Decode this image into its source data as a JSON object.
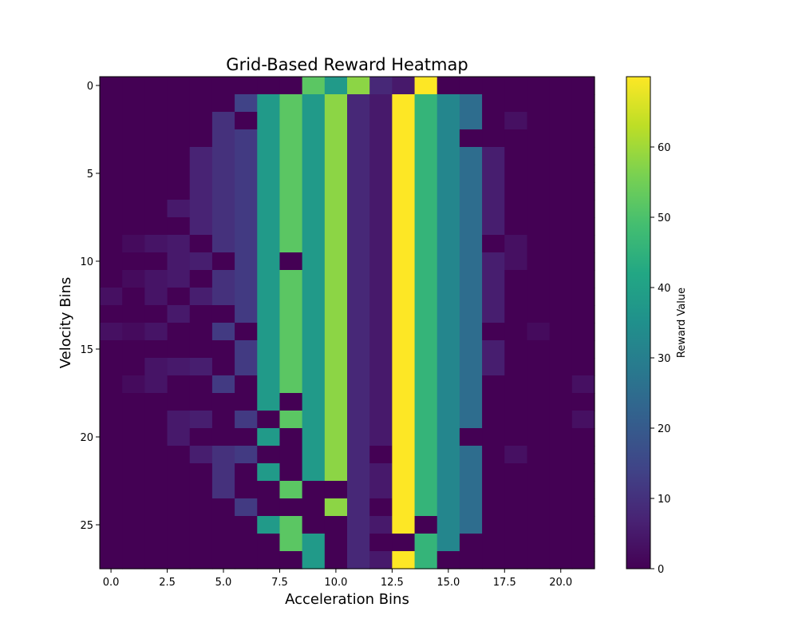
{
  "chart_data": {
    "type": "heatmap",
    "title": "Grid-Based Reward Heatmap",
    "xlabel": "Acceleration Bins",
    "ylabel": "Velocity Bins",
    "colorbar_label": "Reward Value",
    "colormap": "viridis",
    "vmin": 0,
    "vmax": 70,
    "n_cols": 22,
    "n_rows": 28,
    "xlim": [
      -0.5,
      21.5
    ],
    "ylim": [
      27.5,
      -0.5
    ],
    "x_ticks": [
      0,
      2.5,
      5,
      7.5,
      10,
      12.5,
      15,
      17.5,
      20
    ],
    "x_tick_labels": [
      "0.0",
      "2.5",
      "5.0",
      "7.5",
      "10.0",
      "12.5",
      "15.0",
      "17.5",
      "20.0"
    ],
    "y_ticks": [
      0,
      5,
      10,
      15,
      20,
      25
    ],
    "y_tick_labels": [
      "0",
      "5",
      "10",
      "15",
      "20",
      "25"
    ],
    "colorbar_ticks": [
      0,
      10,
      20,
      30,
      40,
      50,
      60
    ],
    "colorbar_tick_labels": [
      "0",
      "10",
      "20",
      "30",
      "40",
      "50",
      "60"
    ],
    "values": [
      [
        0,
        0,
        0,
        0,
        0,
        0,
        0,
        0,
        0,
        52,
        38,
        58,
        8,
        5,
        70,
        0,
        0,
        0,
        0,
        0,
        0,
        0
      ],
      [
        0,
        0,
        0,
        0,
        0,
        0,
        14,
        38,
        52,
        38,
        58,
        8,
        5,
        70,
        46,
        32,
        25,
        0,
        0,
        0,
        0,
        0
      ],
      [
        0,
        0,
        0,
        0,
        0,
        10,
        0,
        38,
        52,
        38,
        58,
        8,
        5,
        70,
        46,
        32,
        25,
        0,
        3,
        0,
        0,
        0
      ],
      [
        0,
        0,
        0,
        0,
        0,
        10,
        12,
        38,
        52,
        38,
        58,
        8,
        5,
        70,
        46,
        32,
        0,
        0,
        0,
        0,
        0,
        0
      ],
      [
        0,
        0,
        0,
        0,
        7,
        10,
        12,
        38,
        52,
        38,
        58,
        8,
        5,
        70,
        46,
        32,
        25,
        6,
        0,
        0,
        0,
        0
      ],
      [
        0,
        0,
        0,
        0,
        7,
        10,
        12,
        38,
        52,
        38,
        58,
        8,
        5,
        70,
        46,
        32,
        25,
        6,
        0,
        0,
        0,
        0
      ],
      [
        0,
        0,
        0,
        0,
        7,
        10,
        12,
        38,
        52,
        38,
        58,
        8,
        5,
        70,
        46,
        32,
        25,
        6,
        0,
        0,
        0,
        0
      ],
      [
        0,
        0,
        0,
        5,
        7,
        10,
        12,
        38,
        52,
        38,
        58,
        8,
        5,
        70,
        46,
        32,
        25,
        6,
        0,
        0,
        0,
        0
      ],
      [
        0,
        0,
        0,
        0,
        7,
        10,
        12,
        38,
        52,
        38,
        58,
        8,
        5,
        70,
        46,
        32,
        25,
        6,
        0,
        0,
        0,
        0
      ],
      [
        0,
        2,
        4,
        5,
        0,
        10,
        12,
        38,
        52,
        38,
        58,
        8,
        5,
        70,
        46,
        32,
        25,
        0,
        3,
        0,
        0,
        0
      ],
      [
        0,
        0,
        0,
        5,
        6,
        0,
        12,
        38,
        0,
        38,
        58,
        8,
        5,
        70,
        46,
        32,
        25,
        6,
        3,
        0,
        0,
        0
      ],
      [
        0,
        2,
        4,
        5,
        0,
        10,
        12,
        38,
        52,
        38,
        58,
        8,
        5,
        70,
        46,
        32,
        25,
        6,
        0,
        0,
        0,
        0
      ],
      [
        3,
        0,
        4,
        0,
        6,
        10,
        12,
        38,
        52,
        38,
        58,
        8,
        5,
        70,
        46,
        32,
        25,
        6,
        0,
        0,
        0,
        0
      ],
      [
        0,
        0,
        0,
        5,
        0,
        0,
        12,
        38,
        52,
        38,
        58,
        8,
        5,
        70,
        46,
        32,
        25,
        6,
        0,
        0,
        0,
        0
      ],
      [
        3,
        2,
        4,
        0,
        0,
        12,
        0,
        38,
        52,
        38,
        58,
        8,
        5,
        70,
        46,
        32,
        25,
        0,
        0,
        2,
        0,
        0
      ],
      [
        0,
        0,
        0,
        0,
        0,
        0,
        12,
        38,
        52,
        38,
        58,
        8,
        5,
        70,
        46,
        32,
        25,
        6,
        0,
        0,
        0,
        0
      ],
      [
        0,
        0,
        4,
        5,
        6,
        0,
        12,
        38,
        52,
        38,
        58,
        8,
        5,
        70,
        46,
        32,
        25,
        6,
        0,
        0,
        0,
        0
      ],
      [
        0,
        2,
        4,
        0,
        0,
        12,
        0,
        38,
        52,
        38,
        58,
        8,
        5,
        70,
        46,
        32,
        25,
        0,
        0,
        0,
        0,
        3
      ],
      [
        0,
        0,
        0,
        0,
        0,
        0,
        0,
        38,
        0,
        38,
        58,
        8,
        5,
        70,
        46,
        32,
        25,
        0,
        0,
        0,
        0,
        0
      ],
      [
        0,
        0,
        0,
        5,
        6,
        0,
        12,
        0,
        52,
        38,
        58,
        8,
        5,
        70,
        46,
        32,
        25,
        0,
        0,
        0,
        0,
        3
      ],
      [
        0,
        0,
        0,
        5,
        0,
        0,
        0,
        38,
        0,
        38,
        58,
        8,
        5,
        70,
        46,
        32,
        0,
        0,
        0,
        0,
        0,
        0
      ],
      [
        0,
        0,
        0,
        0,
        6,
        10,
        12,
        0,
        0,
        38,
        58,
        8,
        0,
        70,
        46,
        32,
        25,
        0,
        3,
        0,
        0,
        0
      ],
      [
        0,
        0,
        0,
        0,
        0,
        10,
        0,
        38,
        0,
        38,
        58,
        8,
        5,
        70,
        46,
        32,
        25,
        0,
        0,
        0,
        0,
        0
      ],
      [
        0,
        0,
        0,
        0,
        0,
        10,
        0,
        0,
        52,
        0,
        0,
        8,
        5,
        70,
        46,
        32,
        25,
        0,
        0,
        0,
        0,
        0
      ],
      [
        0,
        0,
        0,
        0,
        0,
        0,
        12,
        0,
        0,
        0,
        58,
        8,
        0,
        70,
        46,
        32,
        25,
        0,
        0,
        0,
        0,
        0
      ],
      [
        0,
        0,
        0,
        0,
        0,
        0,
        0,
        38,
        52,
        0,
        0,
        8,
        5,
        70,
        0,
        32,
        25,
        0,
        0,
        0,
        0,
        0
      ],
      [
        0,
        0,
        0,
        0,
        0,
        0,
        0,
        0,
        52,
        38,
        0,
        8,
        0,
        0,
        46,
        32,
        0,
        0,
        0,
        0,
        0,
        0
      ],
      [
        0,
        0,
        0,
        0,
        0,
        0,
        0,
        0,
        0,
        38,
        0,
        8,
        5,
        70,
        46,
        0,
        0,
        0,
        0,
        0,
        0,
        0
      ]
    ]
  }
}
